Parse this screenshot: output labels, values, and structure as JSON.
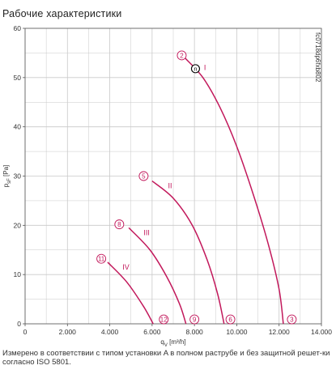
{
  "title": "Рабочие характеристики",
  "caption": "Измерено в соответствии с типом установки A в полном раструбе и без защитной решет-ки согласно ISO 5801.",
  "doc_code": "fc0718dp6fxb802",
  "colors": {
    "curve": "#c2185b",
    "grid": "#c9c9c9",
    "axis": "#555555",
    "point": "#000000"
  },
  "chart_data": {
    "type": "line",
    "title": "Рабочие характеристики",
    "xlabel": "q_V [m³/h]",
    "ylabel": "p_sF [Pa]",
    "xlim": [
      0,
      14000
    ],
    "ylim": [
      0,
      60
    ],
    "x_ticks": [
      "0",
      "2.000",
      "4.000",
      "6.000",
      "8.000",
      "10.000",
      "12.000",
      "14.000"
    ],
    "x_tick_values": [
      0,
      2000,
      4000,
      6000,
      8000,
      10000,
      12000,
      14000
    ],
    "y_ticks": [
      "0",
      "10",
      "20",
      "30",
      "40",
      "50",
      "60"
    ],
    "y_tick_values": [
      0,
      10,
      20,
      30,
      40,
      50,
      60
    ],
    "grid": true,
    "series": [
      {
        "name": "I",
        "points": [
          [
            7550,
            54
          ],
          [
            8400,
            50
          ],
          [
            9200,
            44
          ],
          [
            10000,
            36
          ],
          [
            10800,
            26
          ],
          [
            11500,
            16
          ],
          [
            12000,
            7
          ],
          [
            12200,
            0
          ]
        ],
        "label_pos": [
          8450,
          51.5
        ],
        "start_marker": "2",
        "end_marker": "3",
        "end_x": 12600
      },
      {
        "name": "II",
        "points": [
          [
            6000,
            29
          ],
          [
            7000,
            25.5
          ],
          [
            7900,
            20
          ],
          [
            8600,
            13
          ],
          [
            9100,
            6
          ],
          [
            9400,
            0
          ]
        ],
        "label_pos": [
          6750,
          27.5
        ],
        "start_marker": "5",
        "end_marker": "6",
        "end_x": 9700
      },
      {
        "name": "III",
        "points": [
          [
            4900,
            19.5
          ],
          [
            5900,
            15
          ],
          [
            6700,
            9.5
          ],
          [
            7300,
            4
          ],
          [
            7600,
            0
          ]
        ],
        "label_pos": [
          5600,
          18
        ],
        "start_marker": "8",
        "end_marker": "9",
        "end_x": 8000
      },
      {
        "name": "IV",
        "points": [
          [
            3900,
            12.5
          ],
          [
            4800,
            8.5
          ],
          [
            5600,
            3.5
          ],
          [
            6050,
            0
          ]
        ],
        "label_pos": [
          4600,
          11
        ],
        "start_marker": "11",
        "end_marker": "12",
        "end_x": 6550
      }
    ],
    "point_markers": [
      {
        "label": "2",
        "x": 7400,
        "y": 54.5
      },
      {
        "label": "5",
        "x": 5600,
        "y": 30
      },
      {
        "label": "8",
        "x": 4450,
        "y": 20.2
      },
      {
        "label": "11",
        "x": 3600,
        "y": 13.2
      },
      {
        "label": "3",
        "x": 12600,
        "y": 0.9
      },
      {
        "label": "6",
        "x": 9700,
        "y": 0.9
      },
      {
        "label": "9",
        "x": 8000,
        "y": 0.9
      },
      {
        "label": "12",
        "x": 6550,
        "y": 0.9
      }
    ],
    "operating_point": {
      "label": "n",
      "x": 8050,
      "y": 51.8
    }
  }
}
